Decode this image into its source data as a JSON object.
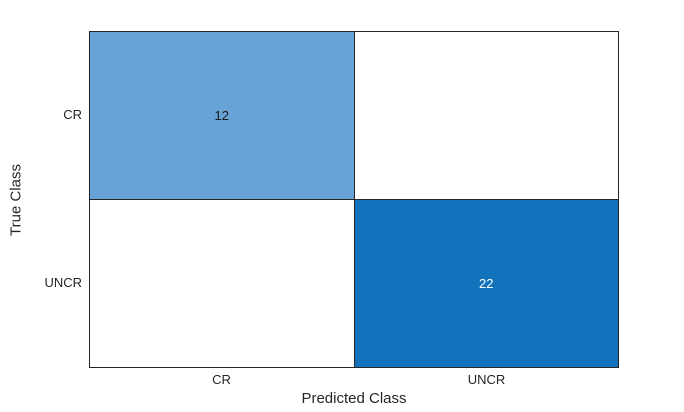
{
  "chart_data": {
    "type": "heatmap",
    "subtype": "confusion-matrix",
    "title": "",
    "xlabel": "Predicted Class",
    "ylabel": "True Class",
    "x_categories": [
      "CR",
      "UNCR"
    ],
    "y_categories": [
      "CR",
      "UNCR"
    ],
    "matrix": [
      [
        12,
        null
      ],
      [
        null,
        22
      ]
    ],
    "cells": [
      {
        "row": "CR",
        "col": "CR",
        "value": "12",
        "bg": "#68A3D7",
        "text_color": "#1a1a1a"
      },
      {
        "row": "CR",
        "col": "UNCR",
        "value": "",
        "bg": "#ffffff",
        "text_color": "#1a1a1a"
      },
      {
        "row": "UNCR",
        "col": "CR",
        "value": "",
        "bg": "#ffffff",
        "text_color": "#1a1a1a"
      },
      {
        "row": "UNCR",
        "col": "UNCR",
        "value": "22",
        "bg": "#1272BC",
        "text_color": "#ffffff"
      }
    ],
    "layout": {
      "grid": "off",
      "legend": "none",
      "border_color": "#262626",
      "background_color": "#ffffff",
      "diagonal_color_low": "#68A3D7",
      "diagonal_color_high": "#1272BC",
      "off_diagonal_color": "#ffffff"
    }
  }
}
